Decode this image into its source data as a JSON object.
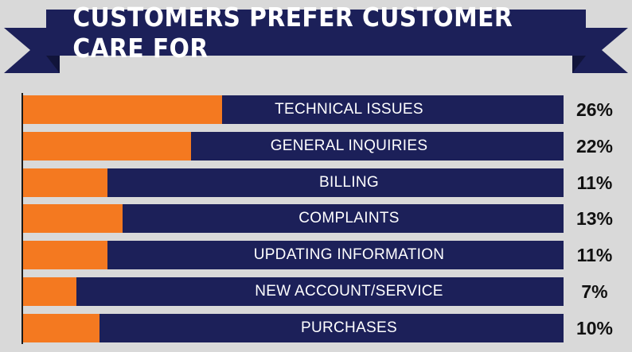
{
  "colors": {
    "background": "#d9d9d9",
    "banner": "#1c2059",
    "banner_dark": "#11143a",
    "bar_track": "#1c2059",
    "bar_fill": "#f47920",
    "label_text": "#ffffff",
    "percent_text": "#111111"
  },
  "chart_data": {
    "type": "bar",
    "orientation": "horizontal",
    "title": "CUSTOMERS PREFER CUSTOMER CARE FOR",
    "unit": "%",
    "xlim": [
      0,
      100
    ],
    "categories": [
      "TECHNICAL ISSUES",
      "GENERAL INQUIRIES",
      "BILLING",
      "COMPLAINTS",
      "UPDATING INFORMATION",
      "NEW ACCOUNT/SERVICE",
      "PURCHASES"
    ],
    "values": [
      26,
      22,
      11,
      13,
      11,
      7,
      10
    ],
    "value_labels": [
      "26%",
      "22%",
      "11%",
      "13%",
      "11%",
      "7%",
      "10%"
    ]
  }
}
